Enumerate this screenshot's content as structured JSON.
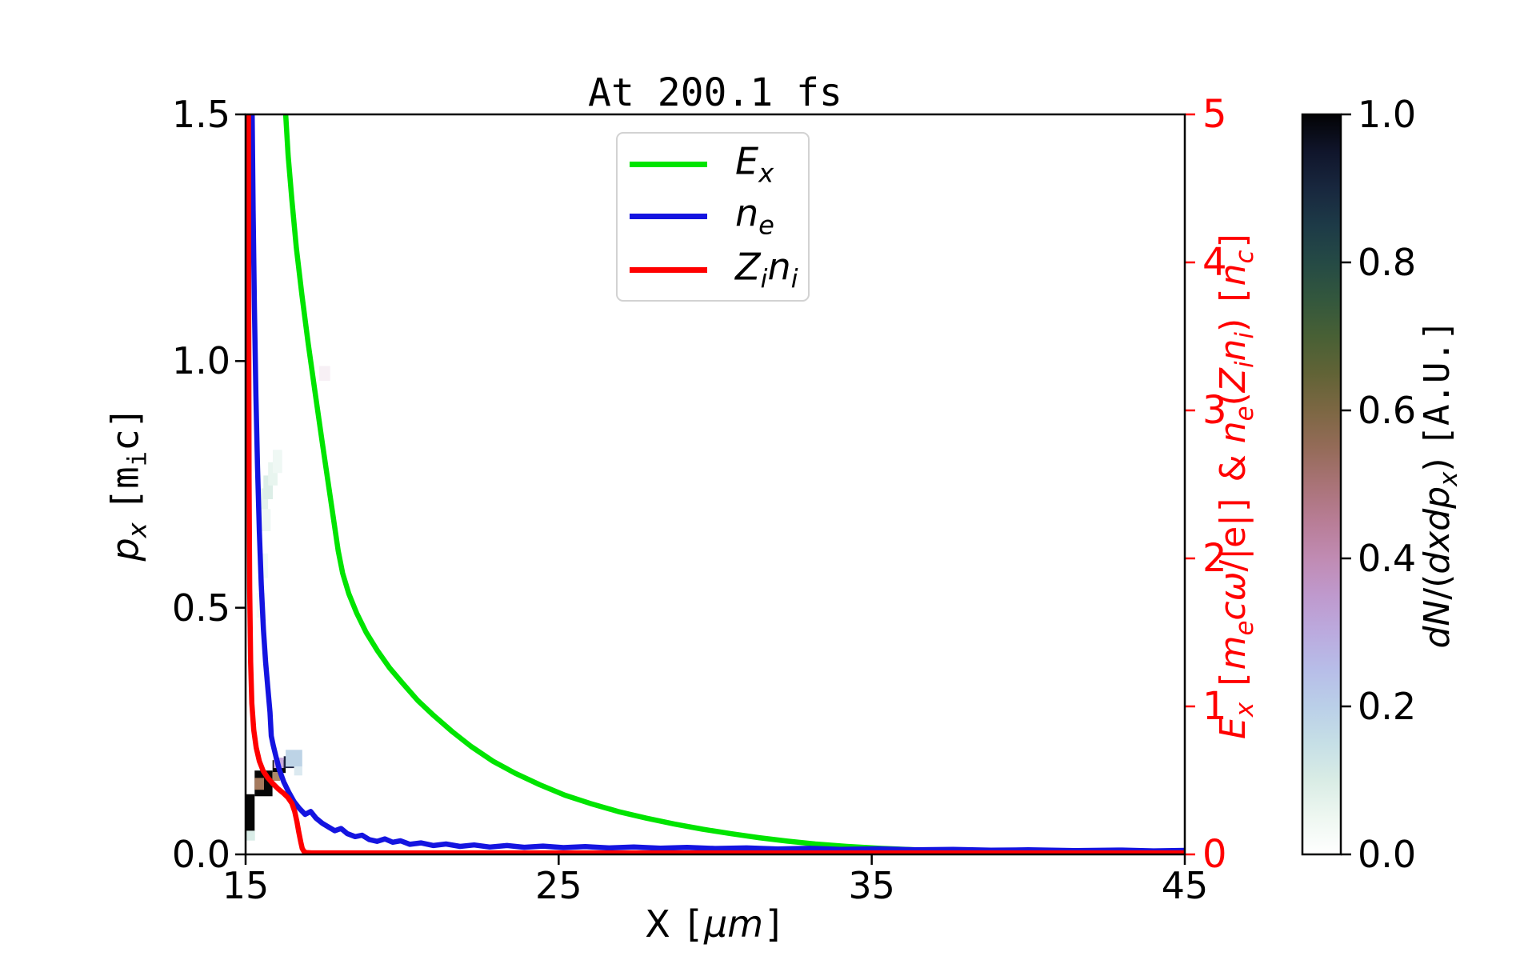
{
  "figure": {
    "title": "At 200.1 fs",
    "background": "#ffffff"
  },
  "chart_data": {
    "type": "line+heatmap",
    "title": "At 200.1 fs",
    "xlabel_html": "X <span class=\"mn\">[</span><i>μm</i><span class=\"mn\">]</span>",
    "ylabel_left_html": "<i>p<sub>x</sub></i> <span class=\"mn\">[m<sub>i</sub>c]</span>",
    "ylabel_right_html": "<i>E<sub>x</sub></i> <span class=\"mn\">[</span><i>m<sub>e</sub>cω</i>/|e|<span class=\"mn\">]</span> &amp; <i>n<sub>e</sub></i>(<i>Z<sub>i</sub>n<sub>i</sub></i>) <span class=\"mn\">[</span><i>n<sub>c</sub></i><span class=\"mn\">]</span>",
    "x_range": [
      15,
      45
    ],
    "x_ticks": [
      "15",
      "25",
      "35",
      "45"
    ],
    "y_left_range": [
      0.0,
      1.5
    ],
    "y_left_ticks": [
      "0.0",
      "0.5",
      "1.0",
      "1.5"
    ],
    "y_right_range": [
      0,
      5
    ],
    "y_right_ticks": [
      "0",
      "1",
      "2",
      "3",
      "4",
      "5"
    ],
    "y_right_color": "#ff0000",
    "grid": false,
    "legend_position": "upper center-right inside",
    "series": [
      {
        "name": "Ex",
        "label_html": "<i>E<sub>x</sub></i>",
        "color": "#00e400",
        "axis": "right",
        "points": [
          [
            16.28,
            5.0
          ],
          [
            16.36,
            4.72
          ],
          [
            16.48,
            4.42
          ],
          [
            16.62,
            4.1
          ],
          [
            16.8,
            3.78
          ],
          [
            17.0,
            3.45
          ],
          [
            17.22,
            3.12
          ],
          [
            17.45,
            2.78
          ],
          [
            17.7,
            2.42
          ],
          [
            17.96,
            2.05
          ],
          [
            18.1,
            1.9
          ],
          [
            18.3,
            1.76
          ],
          [
            18.55,
            1.63
          ],
          [
            18.85,
            1.5
          ],
          [
            19.2,
            1.38
          ],
          [
            19.6,
            1.26
          ],
          [
            20.0,
            1.16
          ],
          [
            20.5,
            1.04
          ],
          [
            21.0,
            0.94
          ],
          [
            21.6,
            0.83
          ],
          [
            22.2,
            0.73
          ],
          [
            22.9,
            0.63
          ],
          [
            23.6,
            0.55
          ],
          [
            24.4,
            0.47
          ],
          [
            25.2,
            0.4
          ],
          [
            26.0,
            0.345
          ],
          [
            26.9,
            0.29
          ],
          [
            27.8,
            0.245
          ],
          [
            28.7,
            0.205
          ],
          [
            29.6,
            0.17
          ],
          [
            30.5,
            0.14
          ],
          [
            31.4,
            0.113
          ],
          [
            32.3,
            0.09
          ],
          [
            33.2,
            0.07
          ],
          [
            34.2,
            0.054
          ],
          [
            35.2,
            0.042
          ],
          [
            36.5,
            0.03
          ],
          [
            38.0,
            0.022
          ],
          [
            39.5,
            0.016
          ],
          [
            41.0,
            0.012
          ],
          [
            43.0,
            0.009
          ],
          [
            45.0,
            0.007
          ]
        ]
      },
      {
        "name": "ne",
        "label_html": "<i>n<sub>e</sub></i>",
        "color": "#1414e0",
        "axis": "right",
        "points": [
          [
            15.21,
            5.0
          ],
          [
            15.24,
            4.35
          ],
          [
            15.28,
            3.7
          ],
          [
            15.33,
            3.1
          ],
          [
            15.38,
            2.62
          ],
          [
            15.44,
            2.18
          ],
          [
            15.5,
            1.82
          ],
          [
            15.57,
            1.52
          ],
          [
            15.64,
            1.3
          ],
          [
            15.72,
            1.1
          ],
          [
            15.78,
            0.96
          ],
          [
            15.82,
            0.8
          ],
          [
            15.88,
            0.74
          ],
          [
            15.97,
            0.66
          ],
          [
            16.08,
            0.57
          ],
          [
            16.22,
            0.49
          ],
          [
            16.38,
            0.42
          ],
          [
            16.55,
            0.355
          ],
          [
            16.72,
            0.31
          ],
          [
            16.9,
            0.27
          ],
          [
            17.08,
            0.29
          ],
          [
            17.25,
            0.245
          ],
          [
            17.45,
            0.21
          ],
          [
            17.65,
            0.185
          ],
          [
            17.85,
            0.16
          ],
          [
            18.05,
            0.175
          ],
          [
            18.25,
            0.14
          ],
          [
            18.5,
            0.12
          ],
          [
            18.72,
            0.13
          ],
          [
            18.95,
            0.1
          ],
          [
            19.2,
            0.088
          ],
          [
            19.45,
            0.105
          ],
          [
            19.7,
            0.082
          ],
          [
            19.95,
            0.092
          ],
          [
            20.25,
            0.068
          ],
          [
            20.6,
            0.078
          ],
          [
            21.0,
            0.06
          ],
          [
            21.4,
            0.07
          ],
          [
            21.85,
            0.054
          ],
          [
            22.3,
            0.064
          ],
          [
            22.8,
            0.05
          ],
          [
            23.35,
            0.06
          ],
          [
            23.9,
            0.048
          ],
          [
            24.5,
            0.056
          ],
          [
            25.15,
            0.046
          ],
          [
            25.85,
            0.053
          ],
          [
            26.6,
            0.044
          ],
          [
            27.4,
            0.05
          ],
          [
            28.25,
            0.042
          ],
          [
            29.1,
            0.047
          ],
          [
            30.0,
            0.04
          ],
          [
            31.0,
            0.044
          ],
          [
            32.0,
            0.037
          ],
          [
            33.0,
            0.041
          ],
          [
            34.0,
            0.034
          ],
          [
            35.2,
            0.038
          ],
          [
            36.4,
            0.031
          ],
          [
            37.6,
            0.034
          ],
          [
            38.8,
            0.028
          ],
          [
            40.0,
            0.031
          ],
          [
            41.5,
            0.026
          ],
          [
            43.0,
            0.029
          ],
          [
            44.0,
            0.024
          ],
          [
            45.0,
            0.027
          ]
        ]
      },
      {
        "name": "Zini",
        "label_html": "<i>Z<sub>i</sub>n<sub>i</sub></i>",
        "color": "#ff0000",
        "axis": "right",
        "points": [
          [
            15.09,
            5.0
          ],
          [
            15.1,
            3.6
          ],
          [
            15.11,
            2.55
          ],
          [
            15.13,
            1.8
          ],
          [
            15.16,
            1.3
          ],
          [
            15.2,
            1.02
          ],
          [
            15.26,
            0.84
          ],
          [
            15.34,
            0.72
          ],
          [
            15.44,
            0.63
          ],
          [
            15.56,
            0.565
          ],
          [
            15.7,
            0.52
          ],
          [
            15.86,
            0.48
          ],
          [
            16.03,
            0.445
          ],
          [
            16.2,
            0.415
          ],
          [
            16.35,
            0.385
          ],
          [
            16.48,
            0.345
          ],
          [
            16.57,
            0.29
          ],
          [
            16.64,
            0.22
          ],
          [
            16.7,
            0.15
          ],
          [
            16.76,
            0.085
          ],
          [
            16.81,
            0.04
          ],
          [
            16.87,
            0.018
          ],
          [
            16.95,
            0.012
          ],
          [
            17.1,
            0.01
          ],
          [
            18.0,
            0.01
          ],
          [
            20.0,
            0.01
          ],
          [
            25.0,
            0.01
          ],
          [
            30.0,
            0.01
          ],
          [
            35.0,
            0.01
          ],
          [
            40.0,
            0.01
          ],
          [
            45.0,
            0.01
          ]
        ]
      }
    ],
    "heatmap": {
      "quantity_label_html": "<i>dN</i>/(<i>dxdp<sub>x</sub></i>) <span class=\"mn\">[A.U.]</span>",
      "value_range": [
        0.0,
        1.0
      ],
      "cells": [
        {
          "x0": 15.0,
          "x1": 15.3,
          "p0": 0.028,
          "p1": 0.048,
          "c": "#d9ece7"
        },
        {
          "x0": 15.0,
          "x1": 15.29,
          "p0": 0.048,
          "p1": 0.122,
          "c": "#060606"
        },
        {
          "x0": 15.29,
          "x1": 15.86,
          "p0": 0.118,
          "p1": 0.17,
          "c": "#060606"
        },
        {
          "x0": 15.29,
          "x1": 15.59,
          "p0": 0.131,
          "p1": 0.155,
          "c": "#a57a5e"
        },
        {
          "x0": 15.86,
          "x1": 16.28,
          "p0": 0.165,
          "p1": 0.191,
          "c": "#060606"
        },
        {
          "x0": 15.86,
          "x1": 16.1,
          "p0": 0.149,
          "p1": 0.167,
          "c": "#ab8a68"
        },
        {
          "x0": 15.9,
          "x1": 16.22,
          "p0": 0.175,
          "p1": 0.196,
          "c": "#c9abdb"
        },
        {
          "x0": 16.22,
          "x1": 16.55,
          "p0": 0.175,
          "p1": 0.199,
          "c": "#1d2240"
        },
        {
          "x0": 16.28,
          "x1": 16.81,
          "p0": 0.178,
          "p1": 0.212,
          "c": "#bdd3e6"
        },
        {
          "x0": 16.55,
          "x1": 16.81,
          "p0": 0.16,
          "p1": 0.178,
          "c": "#dbe9f0"
        },
        {
          "x0": 15.42,
          "x1": 15.72,
          "p0": 0.695,
          "p1": 0.742,
          "c": "#e4f2ec"
        },
        {
          "x0": 15.57,
          "x1": 15.87,
          "p0": 0.72,
          "p1": 0.768,
          "c": "#dceee7"
        },
        {
          "x0": 15.72,
          "x1": 16.02,
          "p0": 0.748,
          "p1": 0.795,
          "c": "#e8f5ef"
        },
        {
          "x0": 15.87,
          "x1": 16.17,
          "p0": 0.773,
          "p1": 0.82,
          "c": "#eff8f4"
        },
        {
          "x0": 15.5,
          "x1": 15.8,
          "p0": 0.655,
          "p1": 0.7,
          "c": "#eef7f3"
        },
        {
          "x0": 15.42,
          "x1": 15.72,
          "p0": 0.56,
          "p1": 0.61,
          "c": "#f2faf7"
        },
        {
          "x0": 15.35,
          "x1": 15.65,
          "p0": 0.48,
          "p1": 0.53,
          "c": "#f4fbf8"
        },
        {
          "x0": 17.35,
          "x1": 17.7,
          "p0": 0.96,
          "p1": 0.99,
          "c": "#f7f0f5"
        }
      ]
    }
  },
  "legend": {
    "entries": [
      {
        "label_html": "<i>E<sub>x</sub></i>",
        "color": "#00e400"
      },
      {
        "label_html": "<i>n<sub>e</sub></i>",
        "color": "#1414e0"
      },
      {
        "label_html": "<i>Z<sub>i</sub>n<sub>i</sub></i>",
        "color": "#ff0000"
      }
    ]
  },
  "colorbar": {
    "label_html": "<i>dN</i>/(<i>dxdp<sub>x</sub></i>) <span class=\"mn\">[A.U.]</span>",
    "ticks": [
      "1.0",
      "0.8",
      "0.6",
      "0.4",
      "0.2",
      "0.0"
    ],
    "colormap_name": "cubehelix_r",
    "stops": [
      [
        0.0,
        "#ffffff"
      ],
      [
        0.05,
        "#eef7f1"
      ],
      [
        0.1,
        "#d9ece5"
      ],
      [
        0.15,
        "#c6dfe6"
      ],
      [
        0.2,
        "#bacfe8"
      ],
      [
        0.25,
        "#b7bde8"
      ],
      [
        0.3,
        "#bbaade"
      ],
      [
        0.35,
        "#bf99cd"
      ],
      [
        0.4,
        "#c08bb3"
      ],
      [
        0.45,
        "#b87d96"
      ],
      [
        0.5,
        "#a97377"
      ],
      [
        0.55,
        "#946b58"
      ],
      [
        0.6,
        "#7c6743"
      ],
      [
        0.65,
        "#616336"
      ],
      [
        0.7,
        "#486035"
      ],
      [
        0.75,
        "#33573d"
      ],
      [
        0.8,
        "#254a45"
      ],
      [
        0.85,
        "#1d3a47"
      ],
      [
        0.9,
        "#18273e"
      ],
      [
        0.95,
        "#10152b"
      ],
      [
        1.0,
        "#030305"
      ]
    ]
  }
}
